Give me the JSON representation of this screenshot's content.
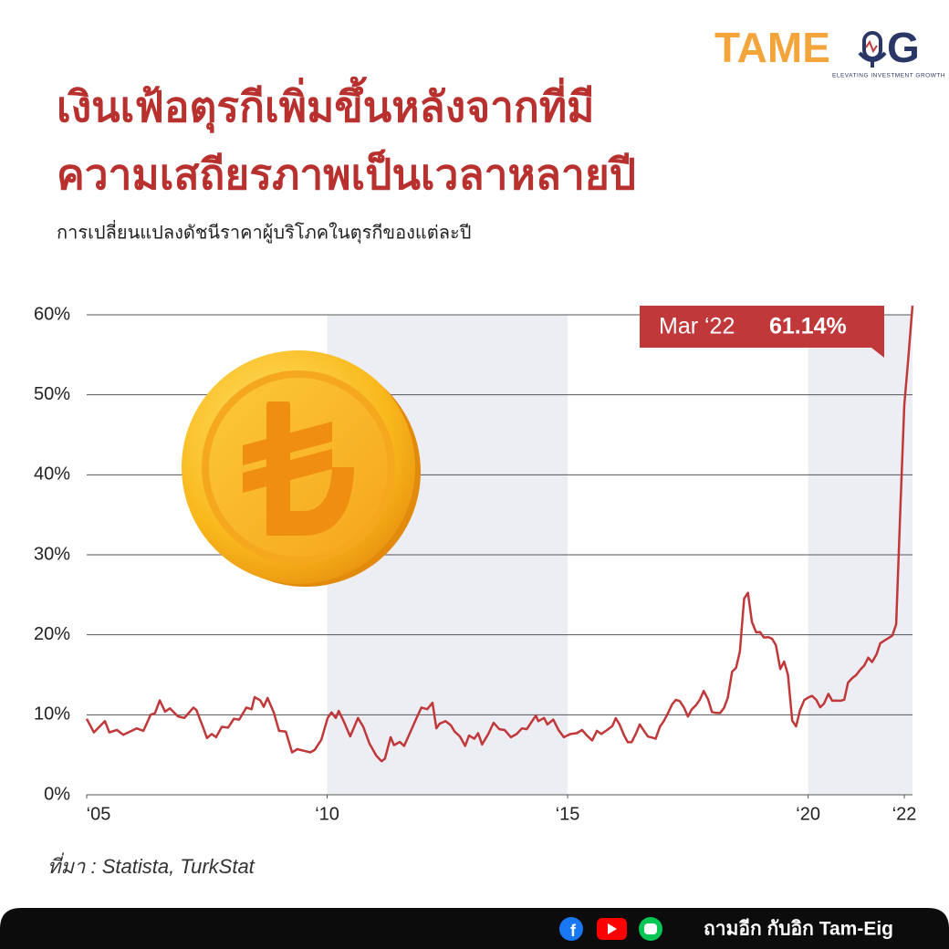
{
  "logo": {
    "left": "TAME",
    "right": "G",
    "tagline": "ELEVATING INVESTMENT GROWTH"
  },
  "source": "ที่มา : Statista, TurkStat",
  "footer": "ถามอีก กับอิก Tam-Eig",
  "chart_data": {
    "type": "line",
    "title": [
      "เงินเฟ้อตุรกีเพิ่มขึ้นหลังจากที่มี",
      "ความเสถียรภาพเป็นเวลาหลายปี"
    ],
    "subtitle": "การเปลี่ยนแปลงดัชนีราคาผู้บริโภคในตุรกีของแต่ละปี",
    "annotation": {
      "text": "Mar ‘22",
      "value": "61.14%"
    },
    "color": "#c0383a",
    "grid": true,
    "bands": [
      [
        2010,
        2015
      ],
      [
        2020,
        2022.17
      ]
    ],
    "xlim": [
      2005,
      2022.17
    ],
    "xticks": [
      {
        "value": 2005,
        "label": "‘05"
      },
      {
        "value": 2010,
        "label": "‘10"
      },
      {
        "value": 2015,
        "label": "‘15"
      },
      {
        "value": 2020,
        "label": "‘20"
      },
      {
        "value": 2022,
        "label": "‘22"
      }
    ],
    "ylim": [
      0,
      60
    ],
    "yticks": [
      {
        "value": 0,
        "label": "0%"
      },
      {
        "value": 10,
        "label": "10%"
      },
      {
        "value": 20,
        "label": "20%"
      },
      {
        "value": 30,
        "label": "30%"
      },
      {
        "value": 40,
        "label": "40%"
      },
      {
        "value": 50,
        "label": "50%"
      },
      {
        "value": 60,
        "label": "60%"
      }
    ],
    "x": [
      2005.0,
      2005.15,
      2005.38,
      2005.47,
      2005.63,
      2005.76,
      2006.04,
      2006.18,
      2006.33,
      2006.42,
      2006.52,
      2006.63,
      2006.73,
      2006.9,
      2007.03,
      2007.22,
      2007.28,
      2007.41,
      2007.5,
      2007.6,
      2007.69,
      2007.81,
      2007.94,
      2008.06,
      2008.17,
      2008.32,
      2008.43,
      2008.49,
      2008.61,
      2008.68,
      2008.76,
      2008.89,
      2009.0,
      2009.14,
      2009.27,
      2009.38,
      2009.52,
      2009.65,
      2009.74,
      2009.88,
      2010.01,
      2010.09,
      2010.18,
      2010.24,
      2010.35,
      2010.48,
      2010.64,
      2010.75,
      2010.88,
      2011.02,
      2011.13,
      2011.2,
      2011.32,
      2011.39,
      2011.51,
      2011.6,
      2011.74,
      2011.85,
      2011.96,
      2012.08,
      2012.19,
      2012.27,
      2012.34,
      2012.46,
      2012.57,
      2012.65,
      2012.76,
      2012.87,
      2012.95,
      2013.06,
      2013.14,
      2013.22,
      2013.35,
      2013.46,
      2013.58,
      2013.69,
      2013.82,
      2013.94,
      2014.05,
      2014.15,
      2014.26,
      2014.34,
      2014.39,
      2014.51,
      2014.58,
      2014.7,
      2014.81,
      2014.92,
      2015.06,
      2015.19,
      2015.3,
      2015.4,
      2015.51,
      2015.61,
      2015.7,
      2015.82,
      2015.93,
      2016.0,
      2016.08,
      2016.17,
      2016.25,
      2016.33,
      2016.42,
      2016.5,
      2016.58,
      2016.67,
      2016.75,
      2016.83,
      2016.92,
      2017.0,
      2017.08,
      2017.17,
      2017.25,
      2017.33,
      2017.42,
      2017.5,
      2017.58,
      2017.67,
      2017.75,
      2017.83,
      2017.92,
      2018.0,
      2018.08,
      2018.17,
      2018.25,
      2018.33,
      2018.42,
      2018.5,
      2018.58,
      2018.67,
      2018.75,
      2018.83,
      2018.92,
      2019.0,
      2019.08,
      2019.17,
      2019.25,
      2019.33,
      2019.42,
      2019.5,
      2019.58,
      2019.67,
      2019.75,
      2019.83,
      2019.92,
      2020.0,
      2020.08,
      2020.17,
      2020.25,
      2020.33,
      2020.42,
      2020.5,
      2020.58,
      2020.67,
      2020.75,
      2020.83,
      2020.92,
      2021.0,
      2021.08,
      2021.17,
      2021.25,
      2021.33,
      2021.42,
      2021.5,
      2021.58,
      2021.67,
      2021.75,
      2021.83,
      2021.92,
      2022.0,
      2022.08,
      2022.17
    ],
    "values": [
      9.5,
      7.8,
      9.2,
      7.8,
      8.1,
      7.5,
      8.3,
      8.0,
      10.0,
      10.2,
      11.8,
      10.4,
      10.8,
      9.8,
      9.6,
      10.9,
      10.6,
      8.6,
      7.1,
      7.6,
      7.2,
      8.5,
      8.4,
      9.5,
      9.4,
      10.9,
      10.7,
      12.2,
      11.8,
      11.0,
      12.1,
      10.3,
      8.0,
      7.9,
      5.3,
      5.7,
      5.5,
      5.3,
      5.6,
      6.9,
      9.6,
      10.3,
      9.6,
      10.5,
      9.1,
      7.3,
      9.6,
      8.5,
      6.4,
      4.9,
      4.2,
      4.5,
      7.2,
      6.2,
      6.6,
      6.1,
      8.0,
      9.5,
      10.9,
      10.7,
      11.5,
      8.3,
      8.9,
      9.2,
      8.7,
      7.9,
      7.3,
      6.1,
      7.4,
      7.0,
      7.7,
      6.3,
      7.6,
      9.0,
      8.2,
      8.1,
      7.2,
      7.6,
      8.3,
      8.2,
      9.2,
      9.9,
      9.2,
      9.6,
      8.8,
      9.4,
      8.1,
      7.2,
      7.6,
      7.7,
      8.1,
      7.4,
      6.8,
      8.0,
      7.6,
      8.1,
      8.6,
      9.58,
      8.78,
      7.46,
      6.57,
      6.58,
      7.64,
      8.79,
      8.05,
      7.28,
      7.16,
      7.0,
      8.53,
      9.22,
      10.13,
      11.29,
      11.87,
      11.72,
      10.9,
      9.79,
      10.68,
      11.2,
      11.9,
      12.98,
      11.92,
      10.35,
      10.26,
      10.23,
      10.85,
      12.15,
      15.39,
      15.85,
      17.9,
      24.52,
      25.24,
      21.62,
      20.3,
      20.35,
      19.67,
      19.71,
      19.5,
      18.71,
      15.72,
      16.65,
      15.01,
      9.26,
      8.55,
      10.56,
      11.84,
      12.15,
      12.37,
      11.86,
      10.94,
      11.39,
      12.62,
      11.76,
      11.77,
      11.75,
      11.89,
      14.03,
      14.6,
      14.97,
      15.61,
      16.19,
      17.14,
      16.59,
      17.53,
      18.95,
      19.25,
      19.58,
      19.89,
      21.31,
      36.08,
      48.69,
      54.44,
      61.14
    ]
  }
}
